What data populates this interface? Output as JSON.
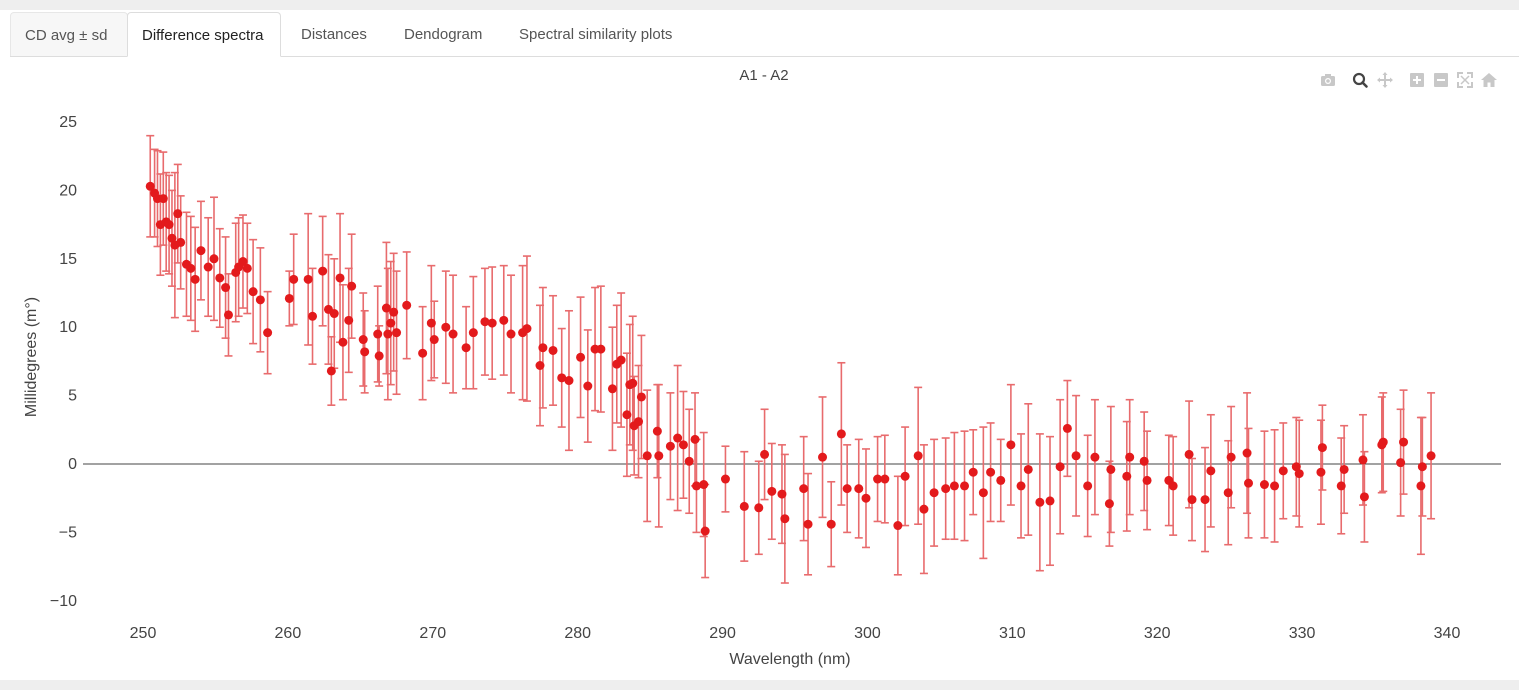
{
  "tabs": [
    {
      "label": "CD avg ± sd",
      "active": false
    },
    {
      "label": "Difference spectra",
      "active": true
    },
    {
      "label": "Distances",
      "active": false
    },
    {
      "label": "Dendogram",
      "active": false
    },
    {
      "label": "Spectral similarity plots",
      "active": false
    }
  ],
  "modebar": [
    "camera-icon",
    "zoom-icon",
    "pan-icon",
    "zoom-in-icon",
    "zoom-out-icon",
    "autoscale-icon",
    "home-icon"
  ],
  "colors": {
    "marker": "#e31a1c",
    "errorbar": "#e86b6d",
    "zeroline": "#444444",
    "modebar_icon": "#c8c8c8",
    "modebar_active": "#444444"
  },
  "chart_data": {
    "type": "scatter",
    "title": "A1 - A2",
    "xlabel": "Wavelength (nm)",
    "ylabel": "Millidegrees (m°)",
    "xlim": [
      248,
      342
    ],
    "ylim": [
      -11,
      26
    ],
    "xticks": [
      250,
      260,
      270,
      280,
      290,
      300,
      310,
      320,
      330,
      340
    ],
    "yticks": [
      -10,
      -5,
      0,
      5,
      10,
      15,
      20,
      25
    ],
    "xtick_labels": [
      "250",
      "260",
      "270",
      "280",
      "290",
      "300",
      "310",
      "320",
      "330",
      "340"
    ],
    "ytick_labels": [
      "−10",
      "−5",
      "0",
      "5",
      "10",
      "15",
      "20",
      "25"
    ],
    "zero_line": true,
    "grid": false,
    "series": [
      {
        "points": [
          [
            250.5,
            20.3,
            3.7
          ],
          [
            250.8,
            19.8,
            3.2
          ],
          [
            251.0,
            19.4,
            3.5
          ],
          [
            251.2,
            17.5,
            3.7
          ],
          [
            251.4,
            19.4,
            3.4
          ],
          [
            251.6,
            17.7,
            3.6
          ],
          [
            251.8,
            17.5,
            3.6
          ],
          [
            252.0,
            16.5,
            3.5
          ],
          [
            252.2,
            16.0,
            5.3
          ],
          [
            252.4,
            18.3,
            3.6
          ],
          [
            252.6,
            16.2,
            3.4
          ],
          [
            253.0,
            14.6,
            3.8
          ],
          [
            253.3,
            14.3,
            3.8
          ],
          [
            253.6,
            13.5,
            3.8
          ],
          [
            254.0,
            15.6,
            3.6
          ],
          [
            254.5,
            14.4,
            3.6
          ],
          [
            254.9,
            15.0,
            4.5
          ],
          [
            255.3,
            13.6,
            3.6
          ],
          [
            255.7,
            12.9,
            3.7
          ],
          [
            255.9,
            10.9,
            3.0
          ],
          [
            256.4,
            14.0,
            3.6
          ],
          [
            256.6,
            14.4,
            3.6
          ],
          [
            256.9,
            14.8,
            3.4
          ],
          [
            257.2,
            14.3,
            3.3
          ],
          [
            257.6,
            12.6,
            3.8
          ],
          [
            258.1,
            12.0,
            3.8
          ],
          [
            258.6,
            9.6,
            3.0
          ],
          [
            260.1,
            12.1,
            2.0
          ],
          [
            260.4,
            13.5,
            3.3
          ],
          [
            261.4,
            13.5,
            4.8
          ],
          [
            261.7,
            10.8,
            3.5
          ],
          [
            262.4,
            14.1,
            4.0
          ],
          [
            262.8,
            11.3,
            4.0
          ],
          [
            263.0,
            6.8,
            2.5
          ],
          [
            263.2,
            11.0,
            4.0
          ],
          [
            263.6,
            13.6,
            4.7
          ],
          [
            263.8,
            8.9,
            4.2
          ],
          [
            264.2,
            10.5,
            3.8
          ],
          [
            264.4,
            13.0,
            3.8
          ],
          [
            265.2,
            9.1,
            3.4
          ],
          [
            265.3,
            8.2,
            3.0
          ],
          [
            266.2,
            9.5,
            3.5
          ],
          [
            266.3,
            7.9,
            2.2
          ],
          [
            266.8,
            11.4,
            4.8
          ],
          [
            266.9,
            9.5,
            4.8
          ],
          [
            267.1,
            10.3,
            4.5
          ],
          [
            267.3,
            11.1,
            4.3
          ],
          [
            267.5,
            9.6,
            4.5
          ],
          [
            268.2,
            11.6,
            3.9
          ],
          [
            269.3,
            8.1,
            3.4
          ],
          [
            269.9,
            10.3,
            4.2
          ],
          [
            270.1,
            9.1,
            2.8
          ],
          [
            270.9,
            10.0,
            4.1
          ],
          [
            271.4,
            9.5,
            4.3
          ],
          [
            272.3,
            8.5,
            3.0
          ],
          [
            272.8,
            9.6,
            4.1
          ],
          [
            273.6,
            10.4,
            3.9
          ],
          [
            274.1,
            10.3,
            4.1
          ],
          [
            274.9,
            10.5,
            4.0
          ],
          [
            275.4,
            9.5,
            4.3
          ],
          [
            276.2,
            9.6,
            4.9
          ],
          [
            276.5,
            9.9,
            5.3
          ],
          [
            277.4,
            7.2,
            4.4
          ],
          [
            277.6,
            8.5,
            4.4
          ],
          [
            278.3,
            8.3,
            4.0
          ],
          [
            278.9,
            6.3,
            3.6
          ],
          [
            279.4,
            6.1,
            5.1
          ],
          [
            280.2,
            7.8,
            4.4
          ],
          [
            280.7,
            5.7,
            4.1
          ],
          [
            281.2,
            8.4,
            4.5
          ],
          [
            281.6,
            8.4,
            4.6
          ],
          [
            282.4,
            5.5,
            4.5
          ],
          [
            282.7,
            7.3,
            4.3
          ],
          [
            283.0,
            7.6,
            4.9
          ],
          [
            283.4,
            3.6,
            4.5
          ],
          [
            283.6,
            5.8,
            4.4
          ],
          [
            283.8,
            5.9,
            4.9
          ],
          [
            283.9,
            2.8,
            3.6
          ],
          [
            284.2,
            3.1,
            4.1
          ],
          [
            284.4,
            4.9,
            4.5
          ],
          [
            284.8,
            0.6,
            4.8
          ],
          [
            285.5,
            2.4,
            3.4
          ],
          [
            285.6,
            0.6,
            5.2
          ],
          [
            286.4,
            1.3,
            3.9
          ],
          [
            286.9,
            1.9,
            5.3
          ],
          [
            287.3,
            1.4,
            3.9
          ],
          [
            287.7,
            0.2,
            3.8
          ],
          [
            288.1,
            1.8,
            3.4
          ],
          [
            288.2,
            -1.6,
            3.4
          ],
          [
            288.7,
            -1.5,
            3.8
          ],
          [
            288.8,
            -4.9,
            3.4
          ],
          [
            290.2,
            -1.1,
            2.4
          ],
          [
            291.5,
            -3.1,
            4.0
          ],
          [
            292.5,
            -3.2,
            3.4
          ],
          [
            292.9,
            0.7,
            3.3
          ],
          [
            293.4,
            -2.0,
            3.5
          ],
          [
            294.1,
            -2.2,
            3.6
          ],
          [
            294.3,
            -4.0,
            4.7
          ],
          [
            295.6,
            -1.8,
            3.8
          ],
          [
            295.9,
            -4.4,
            3.7
          ],
          [
            296.9,
            0.5,
            4.4
          ],
          [
            297.5,
            -4.4,
            3.1
          ],
          [
            298.2,
            2.2,
            5.2
          ],
          [
            298.6,
            -1.8,
            3.2
          ],
          [
            299.4,
            -1.8,
            3.6
          ],
          [
            299.9,
            -2.5,
            3.6
          ],
          [
            300.7,
            -1.1,
            3.1
          ],
          [
            301.2,
            -1.1,
            3.2
          ],
          [
            302.1,
            -4.5,
            3.6
          ],
          [
            302.6,
            -0.9,
            3.6
          ],
          [
            303.5,
            0.6,
            5.0
          ],
          [
            303.9,
            -3.3,
            4.7
          ],
          [
            304.6,
            -2.1,
            3.9
          ],
          [
            305.4,
            -1.8,
            3.7
          ],
          [
            306.0,
            -1.6,
            3.9
          ],
          [
            306.7,
            -1.6,
            4.0
          ],
          [
            307.3,
            -0.6,
            3.1
          ],
          [
            308.0,
            -2.1,
            4.8
          ],
          [
            308.5,
            -0.6,
            3.6
          ],
          [
            309.2,
            -1.2,
            3.0
          ],
          [
            309.9,
            1.4,
            4.4
          ],
          [
            310.6,
            -1.6,
            3.8
          ],
          [
            311.1,
            -0.4,
            4.8
          ],
          [
            311.9,
            -2.8,
            5.0
          ],
          [
            312.6,
            -2.7,
            4.7
          ],
          [
            313.3,
            -0.2,
            4.9
          ],
          [
            313.8,
            2.6,
            3.5
          ],
          [
            314.4,
            0.6,
            4.4
          ],
          [
            315.2,
            -1.6,
            3.7
          ],
          [
            315.7,
            0.5,
            4.2
          ],
          [
            316.7,
            -2.9,
            3.1
          ],
          [
            316.8,
            -0.4,
            4.6
          ],
          [
            317.9,
            -0.9,
            4.0
          ],
          [
            318.1,
            0.5,
            4.2
          ],
          [
            319.1,
            0.2,
            3.6
          ],
          [
            319.3,
            -1.2,
            3.6
          ],
          [
            320.8,
            -1.2,
            3.3
          ],
          [
            321.1,
            -1.6,
            3.6
          ],
          [
            322.2,
            0.7,
            3.9
          ],
          [
            322.4,
            -2.6,
            3.0
          ],
          [
            323.3,
            -2.6,
            3.8
          ],
          [
            323.7,
            -0.5,
            4.1
          ],
          [
            324.9,
            -2.1,
            3.8
          ],
          [
            325.1,
            0.5,
            3.7
          ],
          [
            326.2,
            0.8,
            4.4
          ],
          [
            326.3,
            -1.4,
            4.0
          ],
          [
            327.4,
            -1.5,
            3.9
          ],
          [
            328.1,
            -1.6,
            4.1
          ],
          [
            328.7,
            -0.5,
            3.5
          ],
          [
            329.6,
            -0.2,
            3.6
          ],
          [
            329.8,
            -0.7,
            3.9
          ],
          [
            331.3,
            -0.6,
            3.8
          ],
          [
            331.4,
            1.2,
            3.1
          ],
          [
            332.7,
            -1.6,
            3.5
          ],
          [
            332.9,
            -0.4,
            3.2
          ],
          [
            334.2,
            0.3,
            3.3
          ],
          [
            334.3,
            -2.4,
            3.3
          ],
          [
            335.5,
            1.4,
            3.5
          ],
          [
            335.6,
            1.6,
            3.6
          ],
          [
            336.8,
            0.1,
            3.9
          ],
          [
            337.0,
            1.6,
            3.8
          ],
          [
            338.2,
            -1.6,
            5.0
          ],
          [
            338.3,
            -0.2,
            3.6
          ],
          [
            338.9,
            0.6,
            4.6
          ]
        ]
      }
    ]
  }
}
